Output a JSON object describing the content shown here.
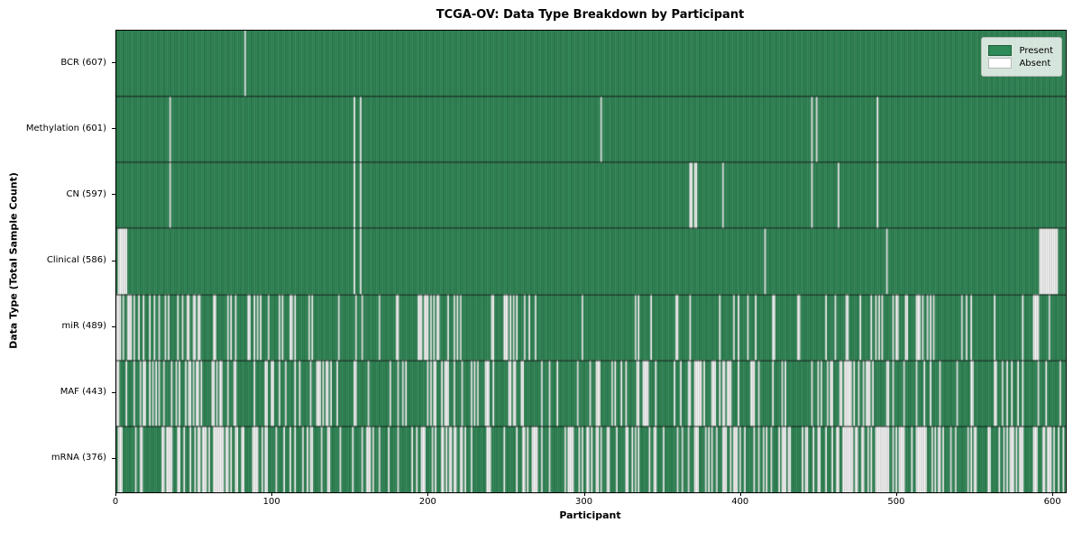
{
  "chart_data": {
    "type": "heatmap",
    "title": "TCGA-OV: Data Type Breakdown by Participant",
    "xlabel": "Participant",
    "ylabel": "Data Type (Total Sample Count)",
    "x_ticks": [
      0,
      100,
      200,
      300,
      400,
      500,
      600
    ],
    "xlim": [
      0,
      608
    ],
    "total_participants": 608,
    "grid": false,
    "legend_position": "upper right",
    "legend_items": [
      {
        "label": "Present",
        "color": "#2e8b57"
      },
      {
        "label": "Absent",
        "color": "#ffffff"
      }
    ],
    "cell_states": [
      "present",
      "absent"
    ],
    "rows": [
      {
        "label": "BCR (607)",
        "data_type": "BCR",
        "present_count": 607,
        "absent_count": 1,
        "absent_segments": [
          [
            82,
            82
          ]
        ],
        "absent_random": []
      },
      {
        "label": "Methylation (601)",
        "data_type": "Methylation",
        "present_count": 601,
        "absent_count": 7,
        "absent_segments": [
          [
            34,
            34
          ],
          [
            152,
            152
          ],
          [
            156,
            156
          ],
          [
            310,
            310
          ],
          [
            445,
            445
          ],
          [
            448,
            448
          ],
          [
            487,
            487
          ]
        ],
        "absent_random": []
      },
      {
        "label": "CN (597)",
        "data_type": "CN",
        "present_count": 597,
        "absent_count": 11,
        "absent_segments": [
          [
            34,
            34
          ],
          [
            152,
            152
          ],
          [
            156,
            156
          ],
          [
            367,
            368
          ],
          [
            370,
            371
          ],
          [
            388,
            388
          ],
          [
            445,
            445
          ],
          [
            462,
            462
          ],
          [
            487,
            487
          ]
        ],
        "absent_random": []
      },
      {
        "label": "Clinical (586)",
        "data_type": "Clinical",
        "present_count": 586,
        "absent_count": 22,
        "absent_segments": [
          [
            1,
            6
          ],
          [
            152,
            152
          ],
          [
            156,
            156
          ],
          [
            415,
            415
          ],
          [
            493,
            493
          ],
          [
            591,
            602
          ]
        ],
        "absent_random": []
      },
      {
        "label": "miR (489)",
        "data_type": "miR",
        "present_count": 489,
        "absent_count": 119,
        "absent_segments": [],
        "absent_random": [
          [
            0,
            10,
            7
          ],
          [
            10,
            95,
            26
          ],
          [
            95,
            130,
            8
          ],
          [
            130,
            190,
            6
          ],
          [
            193,
            215,
            11
          ],
          [
            215,
            245,
            5
          ],
          [
            246,
            258,
            6
          ],
          [
            258,
            310,
            4
          ],
          [
            310,
            360,
            5
          ],
          [
            360,
            420,
            6
          ],
          [
            420,
            470,
            8
          ],
          [
            472,
            525,
            17
          ],
          [
            525,
            607,
            10
          ]
        ]
      },
      {
        "label": "MAF (443)",
        "data_type": "MAF",
        "present_count": 443,
        "absent_count": 165,
        "absent_segments": [],
        "absent_random": [
          [
            0,
            80,
            30
          ],
          [
            80,
            130,
            12
          ],
          [
            130,
            142,
            6
          ],
          [
            142,
            200,
            8
          ],
          [
            200,
            265,
            22
          ],
          [
            265,
            290,
            3
          ],
          [
            290,
            345,
            15
          ],
          [
            345,
            358,
            2
          ],
          [
            360,
            395,
            18
          ],
          [
            395,
            440,
            8
          ],
          [
            440,
            485,
            20
          ],
          [
            485,
            530,
            8
          ],
          [
            530,
            570,
            6
          ],
          [
            570,
            607,
            7
          ]
        ]
      },
      {
        "label": "mRNA (376)",
        "data_type": "mRNA",
        "present_count": 376,
        "absent_count": 232,
        "absent_segments": [],
        "absent_random": [
          [
            0,
            70,
            30
          ],
          [
            70,
            130,
            22
          ],
          [
            130,
            200,
            18
          ],
          [
            200,
            270,
            25
          ],
          [
            270,
            345,
            25
          ],
          [
            345,
            400,
            20
          ],
          [
            400,
            460,
            20
          ],
          [
            460,
            525,
            40
          ],
          [
            525,
            570,
            13
          ],
          [
            570,
            607,
            19
          ]
        ]
      }
    ]
  },
  "style": {
    "present_color": "#2e8b57",
    "absent_color": "#ffffff",
    "present_edge": "rgba(0,0,0,0.38)",
    "present_highlight": "rgba(255,255,255,0.10)",
    "absent_edge": "rgba(140,140,140,0.8)",
    "row_separator": "rgba(0,0,0,0.85)",
    "spine_color": "#000000"
  }
}
